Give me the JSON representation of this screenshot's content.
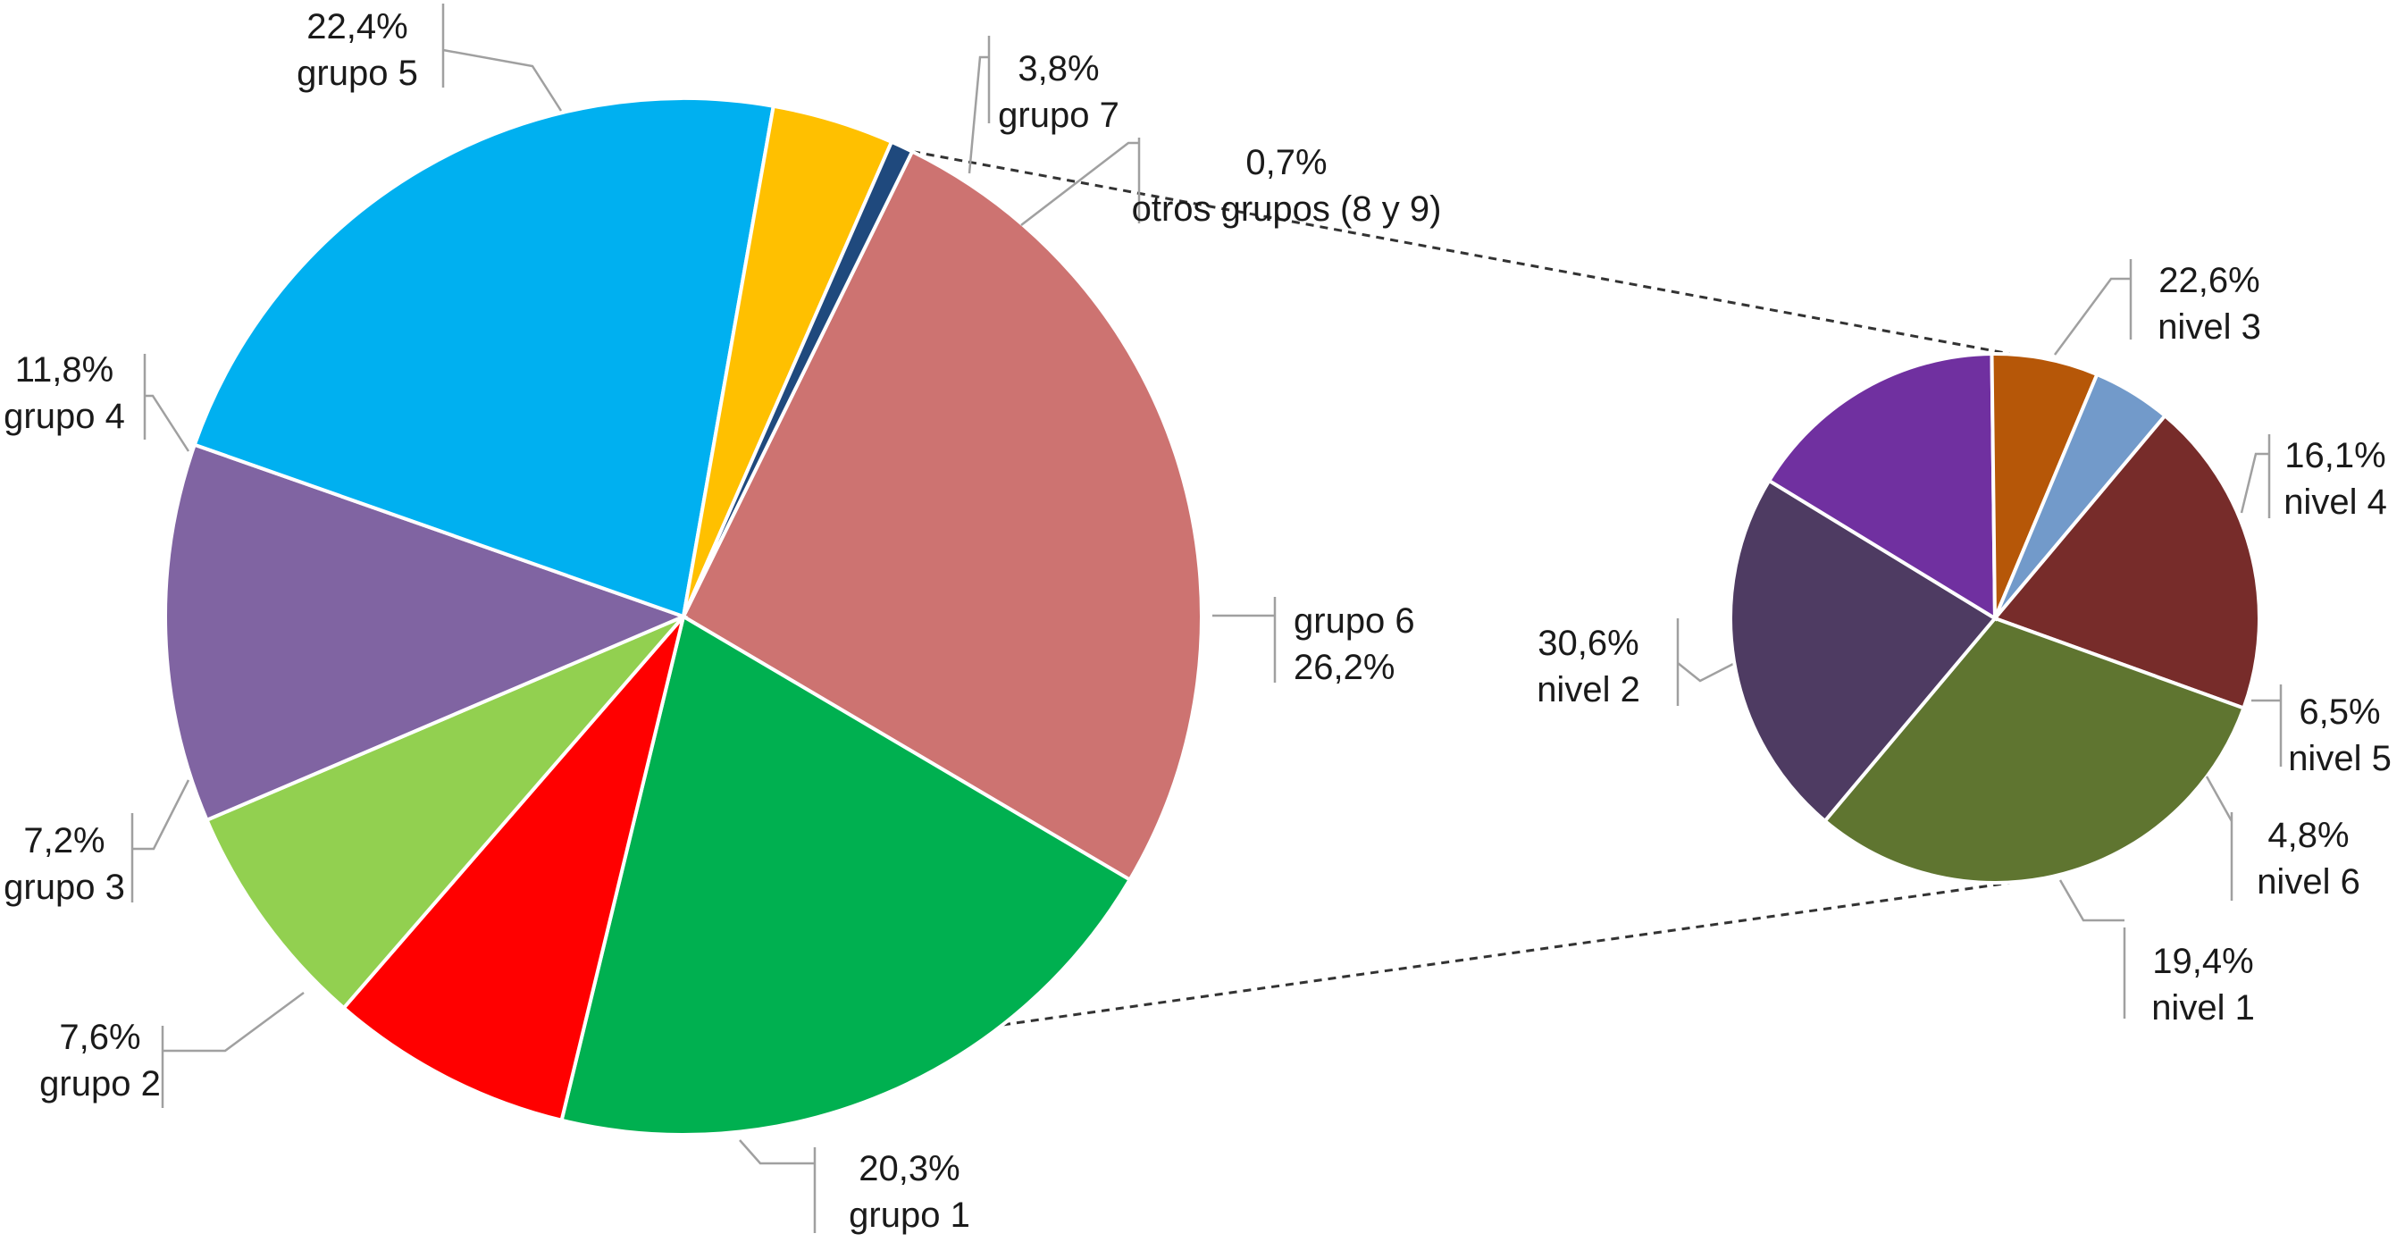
{
  "chart_data": [
    {
      "type": "pie",
      "title": "",
      "slices": [
        {
          "label": "grupo 6",
          "value": 26.2,
          "value_text": "26,2%",
          "color": "#CD7371"
        },
        {
          "label": "grupo 1",
          "value": 20.3,
          "value_text": "20,3%",
          "color": "#00B050"
        },
        {
          "label": "grupo 2",
          "value": 7.6,
          "value_text": "7,6%",
          "color": "#FF0000"
        },
        {
          "label": "grupo 3",
          "value": 7.2,
          "value_text": "7,2%",
          "color": "#92D050"
        },
        {
          "label": "grupo 4",
          "value": 11.8,
          "value_text": "11,8%",
          "color": "#8064A2"
        },
        {
          "label": "grupo 5",
          "value": 22.4,
          "value_text": "22,4%",
          "color": "#00B0F0"
        },
        {
          "label": "grupo 7",
          "value": 3.8,
          "value_text": "3,8%",
          "color": "#FFC000"
        },
        {
          "label": "otros grupos (8 y 9)",
          "value": 0.7,
          "value_text": "0,7%",
          "color": "#1F497D"
        }
      ]
    },
    {
      "type": "pie",
      "title": "",
      "breakdown_of": "otros grupos (8 y 9)",
      "slices": [
        {
          "label": "nivel 1",
          "value": 19.4,
          "value_text": "19,4%",
          "color": "#772C2A"
        },
        {
          "label": "nivel 2",
          "value": 30.6,
          "value_text": "30,6%",
          "color": "#5F7530"
        },
        {
          "label": "nivel 3",
          "value": 22.6,
          "value_text": "22,6%",
          "color": "#4E3B62"
        },
        {
          "label": "nivel 4",
          "value": 16.1,
          "value_text": "16,1%",
          "color": "#7030A0"
        },
        {
          "label": "nivel 5",
          "value": 6.5,
          "value_text": "6,5%",
          "color": "#B65708"
        },
        {
          "label": "nivel 6",
          "value": 4.8,
          "value_text": "4,8%",
          "color": "#729ACA"
        }
      ]
    }
  ]
}
